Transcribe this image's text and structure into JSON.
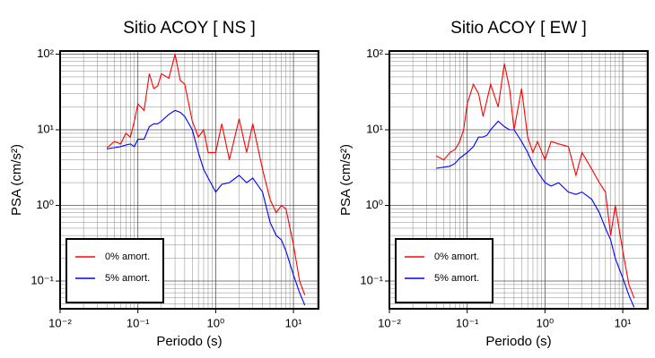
{
  "chart_data": [
    {
      "type": "line",
      "title": "Sitio ACOY [ NS ]",
      "x_label": "Periodo (s)",
      "y_label": "PSA (cm/s²)",
      "log_x": true,
      "log_y": true,
      "grid": true,
      "legend": "lower left",
      "xlim": [
        0.01,
        21
      ],
      "ylim": [
        0.043,
        110
      ],
      "xticks": [
        {
          "value": 0.01,
          "label": "10⁻²"
        },
        {
          "value": 0.1,
          "label": "10⁻¹"
        },
        {
          "value": 1,
          "label": "10⁰"
        },
        {
          "value": 10,
          "label": "10¹"
        }
      ],
      "yticks": [
        {
          "value": 0.1,
          "label": "10⁻¹"
        },
        {
          "value": 1,
          "label": "10⁰"
        },
        {
          "value": 10,
          "label": "10¹"
        },
        {
          "value": 100,
          "label": "10²"
        }
      ],
      "x": [
        0.04,
        0.05,
        0.06,
        0.07,
        0.08,
        0.09,
        0.1,
        0.12,
        0.14,
        0.16,
        0.18,
        0.2,
        0.25,
        0.3,
        0.35,
        0.4,
        0.5,
        0.6,
        0.7,
        0.8,
        1.0,
        1.2,
        1.5,
        2,
        2.5,
        3,
        4,
        5,
        6,
        7,
        8,
        10,
        12,
        14
      ],
      "series": [
        {
          "name": "0% amort.",
          "color": "#ff0000",
          "values": [
            5.8,
            7,
            6.5,
            9,
            8,
            13,
            22,
            18,
            55,
            35,
            38,
            55,
            48,
            100,
            45,
            40,
            13,
            8,
            10,
            5,
            5,
            12,
            4,
            14,
            5,
            12,
            3,
            1.2,
            0.8,
            1.0,
            0.9,
            0.3,
            0.1,
            0.065
          ]
        },
        {
          "name": "5% amort.",
          "color": "#0000ff",
          "values": [
            5.6,
            5.8,
            6,
            6.3,
            6.5,
            6,
            7.5,
            7.5,
            11,
            12,
            12,
            13,
            16,
            18,
            17,
            15,
            10,
            5,
            3,
            2.3,
            1.5,
            1.9,
            2.0,
            2.5,
            2.0,
            2.3,
            1.5,
            0.6,
            0.4,
            0.35,
            0.25,
            0.12,
            0.07,
            0.048
          ]
        }
      ]
    },
    {
      "type": "line",
      "title": "Sitio ACOY [ EW ]",
      "x_label": "Periodo (s)",
      "y_label": "PSA (cm/s²)",
      "log_x": true,
      "log_y": true,
      "grid": true,
      "legend": "lower left",
      "xlim": [
        0.01,
        21
      ],
      "ylim": [
        0.043,
        110
      ],
      "xticks": [
        {
          "value": 0.01,
          "label": "10⁻²"
        },
        {
          "value": 0.1,
          "label": "10⁻¹"
        },
        {
          "value": 1,
          "label": "10⁰"
        },
        {
          "value": 10,
          "label": "10¹"
        }
      ],
      "yticks": [
        {
          "value": 0.1,
          "label": "10⁻¹"
        },
        {
          "value": 1,
          "label": "10⁰"
        },
        {
          "value": 10,
          "label": "10¹"
        },
        {
          "value": 100,
          "label": "10²"
        }
      ],
      "x": [
        0.04,
        0.05,
        0.06,
        0.07,
        0.08,
        0.09,
        0.1,
        0.12,
        0.14,
        0.16,
        0.18,
        0.2,
        0.25,
        0.3,
        0.35,
        0.4,
        0.5,
        0.6,
        0.7,
        0.8,
        1.0,
        1.2,
        1.5,
        2,
        2.5,
        3,
        4,
        5,
        6,
        7,
        8,
        10,
        12,
        14
      ],
      "series": [
        {
          "name": "0% amort.",
          "color": "#ff0000",
          "values": [
            4.5,
            4,
            5,
            5.5,
            7,
            10,
            22,
            40,
            30,
            15,
            25,
            40,
            20,
            75,
            35,
            10,
            35,
            8,
            5,
            7,
            4,
            7,
            6.5,
            6,
            2.5,
            5,
            3,
            2,
            1.5,
            0.4,
            1.0,
            0.25,
            0.09,
            0.06
          ]
        },
        {
          "name": "5% amort.",
          "color": "#0000ff",
          "values": [
            3.1,
            3.2,
            3.3,
            3.6,
            4.2,
            4.6,
            5,
            6,
            8,
            8,
            8.5,
            10,
            13,
            11,
            10,
            10,
            7,
            5,
            3.5,
            2.8,
            2,
            1.8,
            2,
            1.5,
            1.4,
            1.5,
            1.2,
            0.8,
            0.5,
            0.35,
            0.2,
            0.11,
            0.065,
            0.045
          ]
        }
      ]
    }
  ]
}
